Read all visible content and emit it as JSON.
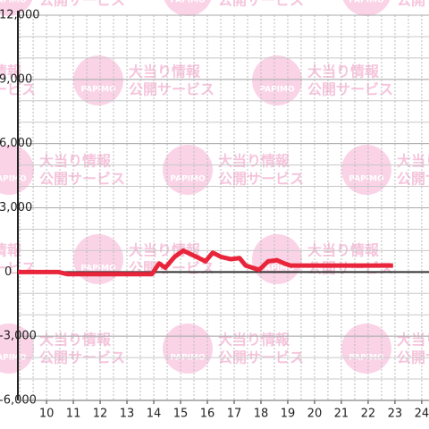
{
  "chart_data": {
    "type": "line",
    "watermark": {
      "brand": "PAPIMO",
      "line1": "大当り情報",
      "line2": "公開サービス"
    },
    "x": [
      8.93,
      10.43,
      10.77,
      13.93,
      14.2,
      14.43,
      14.77,
      15.1,
      15.43,
      15.77,
      15.93,
      16.2,
      16.53,
      16.87,
      17.2,
      17.43,
      17.93,
      18.27,
      18.6,
      18.87,
      19.1,
      22.93
    ],
    "values": [
      0,
      0,
      -100,
      -100,
      400,
      200,
      700,
      1000,
      800,
      600,
      500,
      900,
      700,
      600,
      650,
      300,
      100,
      500,
      550,
      400,
      300,
      300
    ],
    "color": "#e8253a",
    "xlim": [
      8.93,
      24.27
    ],
    "xticks": [
      10,
      11,
      12,
      13,
      14,
      15,
      16,
      17,
      18,
      19,
      20,
      21,
      22,
      23,
      24
    ],
    "ylim": [
      -6000,
      12000
    ],
    "yticks": [
      {
        "value": -6000,
        "label": "-6,000"
      },
      {
        "value": -3000,
        "label": "-3,000"
      },
      0,
      {
        "value": 3000,
        "label": "3,000"
      },
      {
        "value": 6000,
        "label": "6,000"
      },
      {
        "value": 9000,
        "label": "9,000"
      },
      {
        "value": 12000,
        "label": "12,000"
      }
    ],
    "grid": true,
    "y_minor_grid_step": 1000,
    "x_minor_grid_step": 0.5
  }
}
